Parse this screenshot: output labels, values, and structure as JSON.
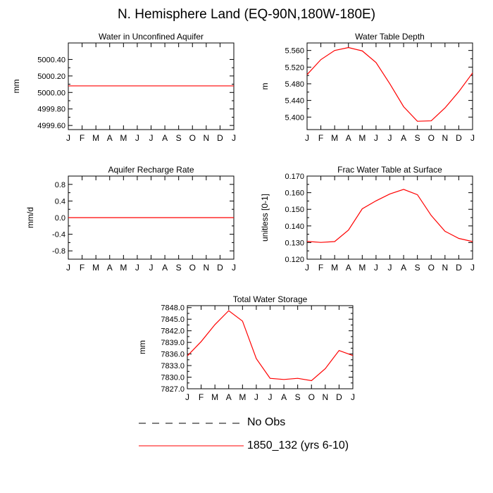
{
  "title": "N. Hemisphere Land (EQ-90N,180W-180E)",
  "legend": [
    {
      "label": "No Obs",
      "color": "#000000",
      "dash": true
    },
    {
      "label": "1850_132 (yrs 6-10)",
      "color": "#ff0000",
      "dash": false
    }
  ],
  "chart_data": [
    {
      "type": "line",
      "title": "Water in Unconfined Aquifer",
      "xlabel": "",
      "ylabel": "mm",
      "categories": [
        "J",
        "F",
        "M",
        "A",
        "M",
        "J",
        "J",
        "A",
        "S",
        "O",
        "N",
        "D",
        "J"
      ],
      "ylim": [
        4999.55,
        5000.6
      ],
      "yticks": [
        5000.4,
        5000.2,
        5000.0,
        4999.8,
        4999.6
      ],
      "ytick_labels": [
        "5000.40",
        "5000.20",
        "5000.00",
        "4999.80",
        "4999.60"
      ],
      "series": [
        {
          "color": "#ff0000",
          "values": [
            5000.08,
            5000.08,
            5000.08,
            5000.08,
            5000.08,
            5000.08,
            5000.08,
            5000.08,
            5000.08,
            5000.08,
            5000.08,
            5000.08,
            5000.08
          ]
        }
      ],
      "grid": false
    },
    {
      "type": "line",
      "title": "Water Table Depth",
      "xlabel": "",
      "ylabel": "m",
      "categories": [
        "J",
        "F",
        "M",
        "A",
        "M",
        "J",
        "J",
        "A",
        "S",
        "O",
        "N",
        "D",
        "J"
      ],
      "ylim": [
        5.37,
        5.578
      ],
      "yticks": [
        5.56,
        5.52,
        5.48,
        5.44,
        5.4
      ],
      "ytick_labels": [
        "5.560",
        "5.520",
        "5.480",
        "5.440",
        "5.400"
      ],
      "series": [
        {
          "color": "#ff0000",
          "values": [
            5.502,
            5.538,
            5.56,
            5.567,
            5.559,
            5.531,
            5.48,
            5.425,
            5.39,
            5.391,
            5.422,
            5.461,
            5.506
          ]
        }
      ],
      "grid": false
    },
    {
      "type": "line",
      "title": "Aquifer Recharge Rate",
      "xlabel": "",
      "ylabel": "mm/d",
      "categories": [
        "J",
        "F",
        "M",
        "A",
        "M",
        "J",
        "J",
        "A",
        "S",
        "O",
        "N",
        "D",
        "J"
      ],
      "ylim": [
        -1.0,
        1.0
      ],
      "yticks": [
        0.8,
        0.4,
        0.0,
        -0.4,
        -0.8
      ],
      "ytick_labels": [
        "0.8",
        "0.4",
        "0.0",
        "-0.4",
        "-0.8"
      ],
      "series": [
        {
          "color": "#ff0000",
          "values": [
            0,
            0,
            0,
            0,
            0,
            0,
            0,
            0,
            0,
            0,
            0,
            0,
            0
          ]
        }
      ],
      "grid": false
    },
    {
      "type": "line",
      "title": "Frac Water Table at Surface",
      "xlabel": "",
      "ylabel": "unitless [0-1]",
      "categories": [
        "J",
        "F",
        "M",
        "A",
        "M",
        "J",
        "J",
        "A",
        "S",
        "O",
        "N",
        "D",
        "J"
      ],
      "ylim": [
        0.12,
        0.17
      ],
      "yticks": [
        0.17,
        0.16,
        0.15,
        0.14,
        0.13,
        0.12
      ],
      "ytick_labels": [
        "0.170",
        "0.160",
        "0.150",
        "0.140",
        "0.130",
        "0.120"
      ],
      "series": [
        {
          "color": "#ff0000",
          "values": [
            0.1307,
            0.1301,
            0.1306,
            0.1375,
            0.1503,
            0.1551,
            0.1592,
            0.162,
            0.1588,
            0.1463,
            0.1368,
            0.1325,
            0.1306
          ]
        }
      ],
      "grid": false
    },
    {
      "type": "line",
      "title": "Total Water Storage",
      "xlabel": "",
      "ylabel": "mm",
      "categories": [
        "J",
        "F",
        "M",
        "A",
        "M",
        "J",
        "J",
        "A",
        "S",
        "O",
        "N",
        "D",
        "J"
      ],
      "ylim": [
        7827.0,
        7848.5
      ],
      "yticks": [
        7848.0,
        7845.0,
        7842.0,
        7839.0,
        7836.0,
        7833.0,
        7830.0,
        7827.0
      ],
      "ytick_labels": [
        "7848.0",
        "7845.0",
        "7842.0",
        "7839.0",
        "7836.0",
        "7833.0",
        "7830.0",
        "7827.0"
      ],
      "series": [
        {
          "color": "#ff0000",
          "values": [
            7835.5,
            7839.2,
            7843.6,
            7847.2,
            7844.5,
            7834.8,
            7829.7,
            7829.4,
            7829.7,
            7829.1,
            7832.2,
            7836.9,
            7835.6
          ]
        }
      ],
      "grid": false
    }
  ]
}
